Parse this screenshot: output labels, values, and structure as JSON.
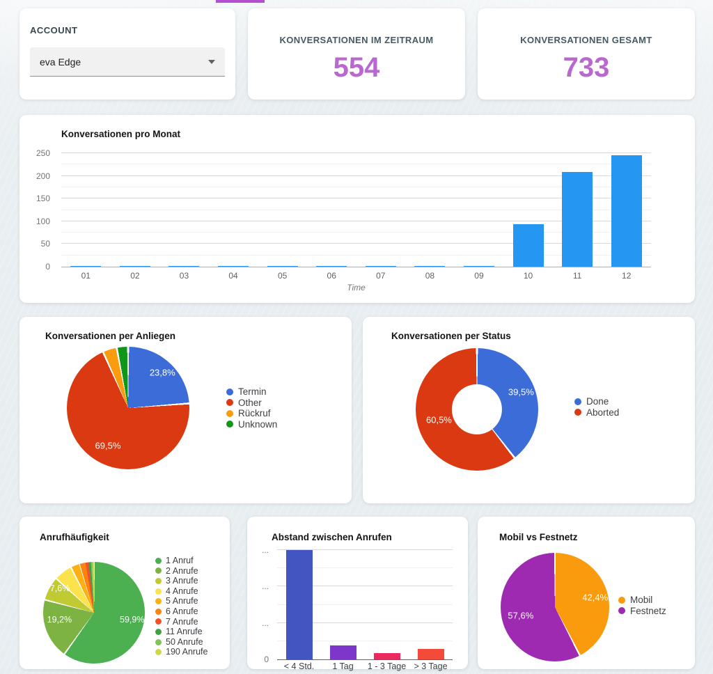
{
  "top_strip_color": "#b44fd1",
  "accent_purple": "#b968ce",
  "account": {
    "label": "ACCOUNT",
    "selected": "eva Edge"
  },
  "stats": [
    {
      "title": "KONVERSATIONEN IM ZEITRAUM",
      "value": "554"
    },
    {
      "title": "KONVERSATIONEN GESAMT",
      "value": "733"
    }
  ],
  "chart_data": [
    {
      "type": "bar",
      "title": "Konversationen pro Monat",
      "xlabel": "Time",
      "categories": [
        "01",
        "02",
        "03",
        "04",
        "05",
        "06",
        "07",
        "08",
        "09",
        "10",
        "11",
        "12"
      ],
      "values": [
        1,
        1,
        1,
        1,
        1,
        1,
        1,
        1,
        2,
        93,
        209,
        245
      ],
      "ylim": [
        0,
        250
      ],
      "yticks": [
        {
          "v": 0,
          "label": "0"
        },
        {
          "v": 50,
          "label": "50"
        },
        {
          "v": 100,
          "label": "100"
        },
        {
          "v": 150,
          "label": "150"
        },
        {
          "v": 200,
          "label": "200"
        },
        {
          "v": 250,
          "label": "250"
        }
      ],
      "minor_ticks": [
        25,
        75,
        125,
        175,
        225
      ],
      "bar_color": "#2597f2",
      "grid": true,
      "legend_position": "none"
    },
    {
      "type": "pie",
      "title": "Konversationen per Anliegen",
      "legend_position": "right",
      "slices": [
        {
          "label": "Termin",
          "pct": 23.8,
          "color": "#3c6cd7",
          "text": "23,8%"
        },
        {
          "label": "Other",
          "pct": 69.5,
          "color": "#da3911",
          "text": "69,5%"
        },
        {
          "label": "Rückruf",
          "pct": 3.7,
          "color": "#fa9c0d",
          "text": ""
        },
        {
          "label": "Unknown",
          "pct": 3.0,
          "color": "#109618",
          "text": ""
        }
      ]
    },
    {
      "type": "pie",
      "subtype": "donut",
      "title": "Konversationen per Status",
      "legend_position": "right",
      "slices": [
        {
          "label": "Done",
          "pct": 39.5,
          "color": "#3c6cd7",
          "text": "39,5%"
        },
        {
          "label": "Aborted",
          "pct": 60.5,
          "color": "#da3911",
          "text": "60,5%"
        }
      ]
    },
    {
      "type": "pie",
      "title": "Anrufhäufigkeit",
      "legend_position": "right",
      "slices": [
        {
          "label": "1 Anruf",
          "pct": 59.9,
          "color": "#4caf50",
          "text": "59,9%"
        },
        {
          "label": "2 Anrufe",
          "pct": 19.2,
          "color": "#7cb342",
          "text": "19,2%"
        },
        {
          "label": "3 Anrufe",
          "pct": 7.6,
          "color": "#c0ca33",
          "text": "7,6%"
        },
        {
          "label": "4 Anrufe",
          "pct": 5.8,
          "color": "#fce34d",
          "text": ""
        },
        {
          "label": "5 Anrufe",
          "pct": 3.0,
          "color": "#fbb116",
          "text": ""
        },
        {
          "label": "6 Anrufe",
          "pct": 1.8,
          "color": "#f98410",
          "text": ""
        },
        {
          "label": "7 Anrufe",
          "pct": 1.0,
          "color": "#f4502a",
          "text": ""
        },
        {
          "label": "11 Anrufe",
          "pct": 0.7,
          "color": "#43a047",
          "text": ""
        },
        {
          "label": "50 Anrufe",
          "pct": 0.5,
          "color": "#81c356",
          "text": ""
        },
        {
          "label": "190 Anrufe",
          "pct": 0.5,
          "color": "#cdd94a",
          "text": ""
        }
      ]
    },
    {
      "type": "bar",
      "title": "Abstand zwischen Anrufen",
      "categories": [
        "< 4 Std.",
        "1 Tag",
        "1 - 3 Tage",
        "> 3 Tage"
      ],
      "values": [
        300,
        38,
        18,
        28
      ],
      "ylim": [
        0,
        310
      ],
      "yticks": [
        {
          "v": 0,
          "label": "0"
        },
        {
          "v": 100,
          "label": "..."
        },
        {
          "v": 200,
          "label": "..."
        },
        {
          "v": 300,
          "label": "..."
        }
      ],
      "minor_ticks": [
        50,
        150,
        250
      ],
      "bar_colors": [
        "#4355c0",
        "#7c36c9",
        "#ea2a61",
        "#f44a3a"
      ],
      "grid": true,
      "legend_position": "none"
    },
    {
      "type": "pie",
      "title": "Mobil vs Festnetz",
      "legend_position": "right",
      "slices": [
        {
          "label": "Mobil",
          "pct": 42.4,
          "color": "#f99b0d",
          "text": "42,4%"
        },
        {
          "label": "Festnetz",
          "pct": 57.6,
          "color": "#9d2ab1",
          "text": "57,6%"
        }
      ]
    }
  ]
}
